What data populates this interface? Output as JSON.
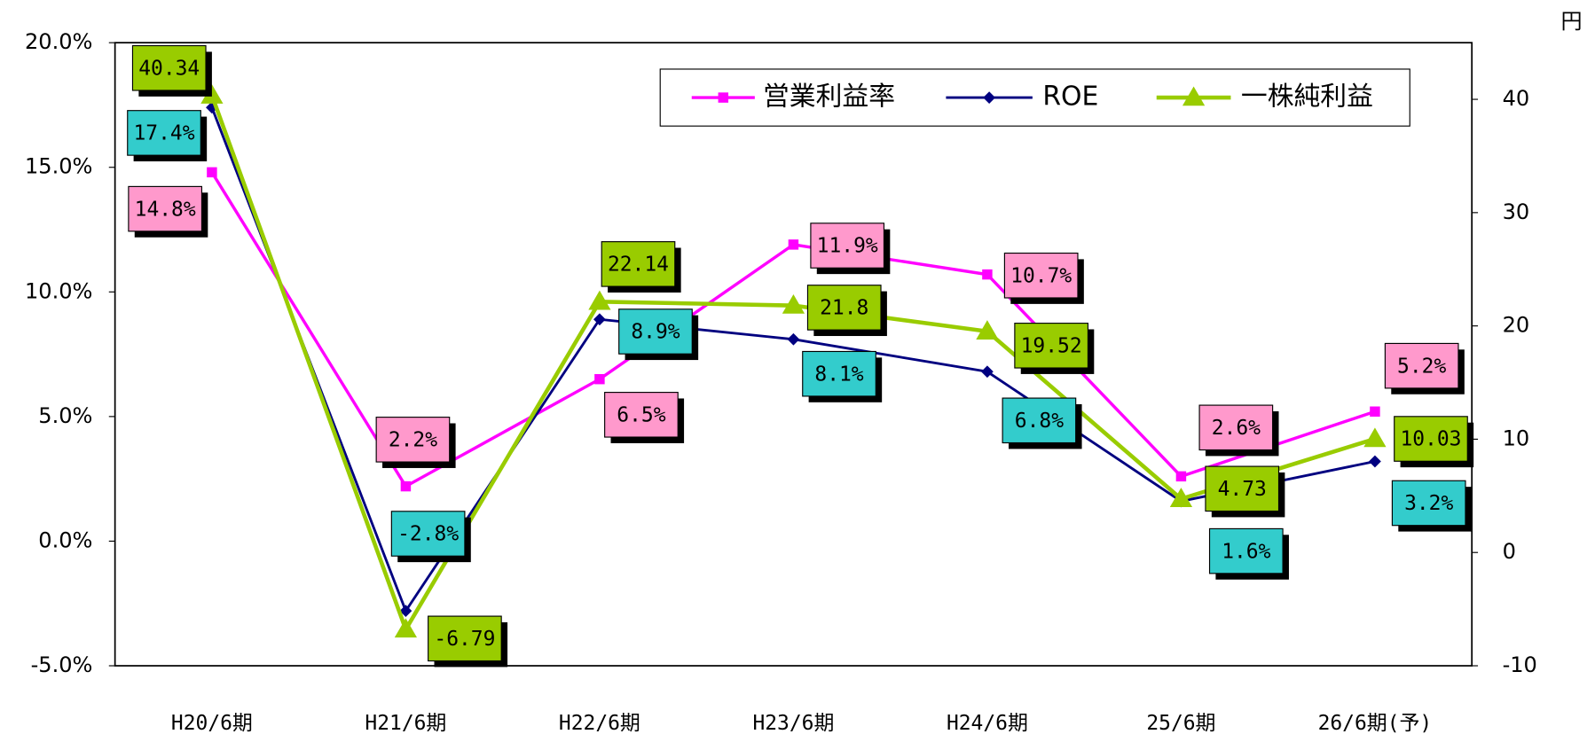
{
  "chart_data": {
    "type": "line",
    "categories": [
      "H20/6期",
      "H21/6期",
      "H22/6期",
      "H23/6期",
      "H24/6期",
      "25/6期",
      "26/6期(予)"
    ],
    "ylim": [
      -5,
      20
    ],
    "yticks": [
      {
        "value": -5,
        "label": "-5.0%"
      },
      {
        "value": 0,
        "label": "0.0%"
      },
      {
        "value": 5,
        "label": "5.0%"
      },
      {
        "value": 10,
        "label": "10.0%"
      },
      {
        "value": 15,
        "label": "15.0%"
      },
      {
        "value": 20,
        "label": "20.0%"
      }
    ],
    "y2lim": [
      -10,
      45
    ],
    "y2ticks": [
      -10,
      0,
      10,
      20,
      30,
      40
    ],
    "y2_unit": "円",
    "legend": "top-right",
    "series": [
      {
        "name": "営業利益率",
        "color": "#ff00ff",
        "label_color": "#ff99cc",
        "marker": "square",
        "values": [
          14.8,
          2.2,
          6.5,
          11.9,
          10.7,
          2.6,
          5.2
        ],
        "value_labels": [
          "14.8%",
          "2.2%",
          "6.5%",
          "11.9%",
          "10.7%",
          "2.6%",
          "5.2%"
        ]
      },
      {
        "name": "ROE",
        "color": "#000080",
        "label_color": "#33cccc",
        "marker": "diamond",
        "values": [
          17.4,
          -2.8,
          8.9,
          8.1,
          6.8,
          1.6,
          3.2
        ],
        "value_labels": [
          "17.4%",
          "-2.8%",
          "8.9%",
          "8.1%",
          "6.8%",
          "1.6%",
          "3.2%"
        ]
      },
      {
        "name": "一株純利益",
        "color": "#99cc00",
        "label_color": "#99cc00",
        "marker": "triangle",
        "axis": "y2",
        "values": [
          40.34,
          -6.79,
          22.14,
          21.8,
          19.52,
          4.73,
          10.03
        ]
      }
    ]
  }
}
